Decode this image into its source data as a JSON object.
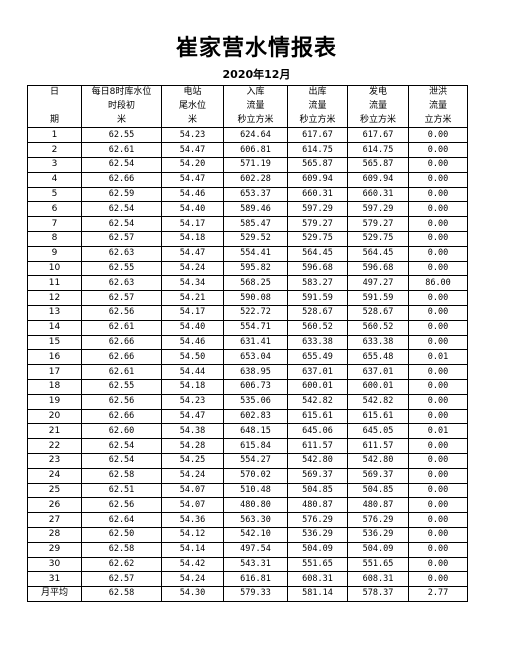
{
  "title": "崔家营水情报表",
  "subtitle": "2020年12月",
  "headers": [
    [
      "日",
      "每日8时库水位",
      "电站",
      "入库",
      "出库",
      "发电",
      "泄洪"
    ],
    [
      "",
      "时段初",
      "尾水位",
      "流量",
      "流量",
      "流量",
      "流量"
    ],
    [
      "期",
      "米",
      "米",
      "秒立方米",
      "秒立方米",
      "秒立方米",
      "立方米"
    ]
  ],
  "rows": [
    [
      "1",
      "62.55",
      "54.23",
      "624.64",
      "617.67",
      "617.67",
      "0.00"
    ],
    [
      "2",
      "62.61",
      "54.47",
      "606.81",
      "614.75",
      "614.75",
      "0.00"
    ],
    [
      "3",
      "62.54",
      "54.20",
      "571.19",
      "565.87",
      "565.87",
      "0.00"
    ],
    [
      "4",
      "62.66",
      "54.47",
      "602.28",
      "609.94",
      "609.94",
      "0.00"
    ],
    [
      "5",
      "62.59",
      "54.46",
      "653.37",
      "660.31",
      "660.31",
      "0.00"
    ],
    [
      "6",
      "62.54",
      "54.40",
      "589.46",
      "597.29",
      "597.29",
      "0.00"
    ],
    [
      "7",
      "62.54",
      "54.17",
      "585.47",
      "579.27",
      "579.27",
      "0.00"
    ],
    [
      "8",
      "62.57",
      "54.18",
      "529.52",
      "529.75",
      "529.75",
      "0.00"
    ],
    [
      "9",
      "62.63",
      "54.47",
      "554.41",
      "564.45",
      "564.45",
      "0.00"
    ],
    [
      "10",
      "62.55",
      "54.24",
      "595.82",
      "596.68",
      "596.68",
      "0.00"
    ],
    [
      "11",
      "62.63",
      "54.34",
      "568.25",
      "583.27",
      "497.27",
      "86.00"
    ],
    [
      "12",
      "62.57",
      "54.21",
      "590.08",
      "591.59",
      "591.59",
      "0.00"
    ],
    [
      "13",
      "62.56",
      "54.17",
      "522.72",
      "528.67",
      "528.67",
      "0.00"
    ],
    [
      "14",
      "62.61",
      "54.40",
      "554.71",
      "560.52",
      "560.52",
      "0.00"
    ],
    [
      "15",
      "62.66",
      "54.46",
      "631.41",
      "633.38",
      "633.38",
      "0.00"
    ],
    [
      "16",
      "62.66",
      "54.50",
      "653.04",
      "655.49",
      "655.48",
      "0.01"
    ],
    [
      "17",
      "62.61",
      "54.44",
      "638.95",
      "637.01",
      "637.01",
      "0.00"
    ],
    [
      "18",
      "62.55",
      "54.18",
      "606.73",
      "600.01",
      "600.01",
      "0.00"
    ],
    [
      "19",
      "62.56",
      "54.23",
      "535.06",
      "542.82",
      "542.82",
      "0.00"
    ],
    [
      "20",
      "62.66",
      "54.47",
      "602.83",
      "615.61",
      "615.61",
      "0.00"
    ],
    [
      "21",
      "62.60",
      "54.38",
      "648.15",
      "645.06",
      "645.05",
      "0.01"
    ],
    [
      "22",
      "62.54",
      "54.28",
      "615.84",
      "611.57",
      "611.57",
      "0.00"
    ],
    [
      "23",
      "62.54",
      "54.25",
      "554.27",
      "542.80",
      "542.80",
      "0.00"
    ],
    [
      "24",
      "62.58",
      "54.24",
      "570.02",
      "569.37",
      "569.37",
      "0.00"
    ],
    [
      "25",
      "62.51",
      "54.07",
      "510.48",
      "504.85",
      "504.85",
      "0.00"
    ],
    [
      "26",
      "62.56",
      "54.07",
      "480.80",
      "480.87",
      "480.87",
      "0.00"
    ],
    [
      "27",
      "62.64",
      "54.36",
      "563.30",
      "576.29",
      "576.29",
      "0.00"
    ],
    [
      "28",
      "62.50",
      "54.12",
      "542.10",
      "536.29",
      "536.29",
      "0.00"
    ],
    [
      "29",
      "62.58",
      "54.14",
      "497.54",
      "504.09",
      "504.09",
      "0.00"
    ],
    [
      "30",
      "62.62",
      "54.42",
      "543.31",
      "551.65",
      "551.65",
      "0.00"
    ],
    [
      "31",
      "62.57",
      "54.24",
      "616.81",
      "608.31",
      "608.31",
      "0.00"
    ]
  ],
  "footer": [
    "月平均",
    "62.58",
    "54.30",
    "579.33",
    "581.14",
    "578.37",
    "2.77"
  ]
}
